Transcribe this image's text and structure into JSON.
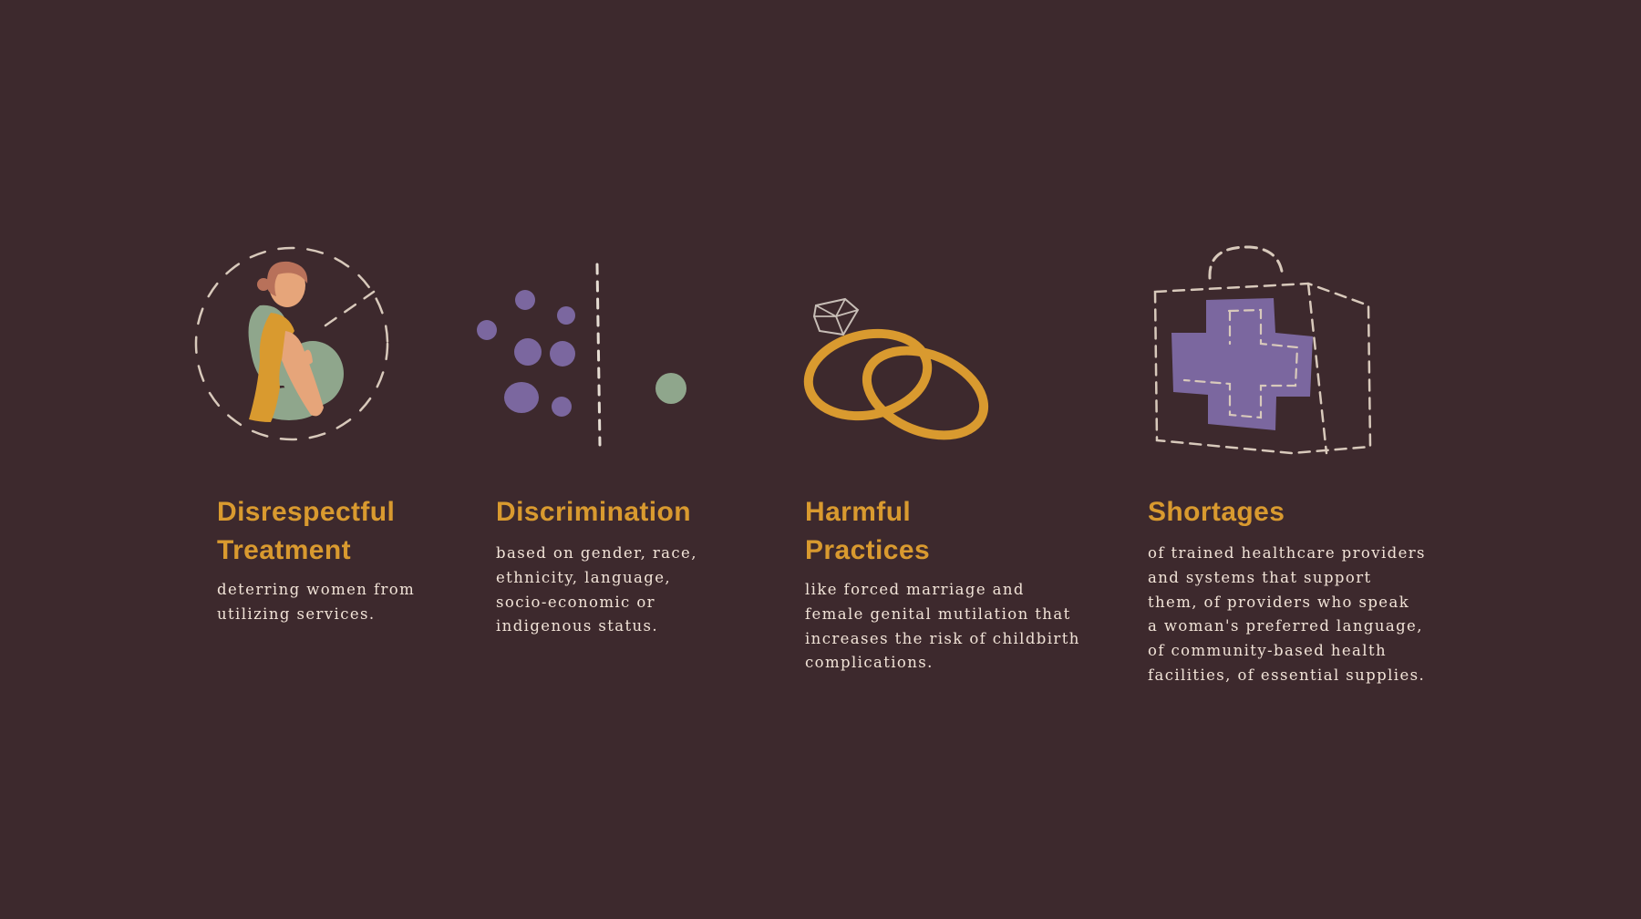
{
  "colors": {
    "background": "#3d292d",
    "title": "#d99a2f",
    "text": "#f1e3d7",
    "dashes": "#d8c9bb",
    "purple": "#7b679f",
    "sage": "#8fa68c",
    "gold": "#d99a2f",
    "skin": "#e6a57a",
    "hair": "#b8715a"
  },
  "items": [
    {
      "icon": "seated-woman-icon",
      "title_line1": "Disrespectful",
      "title_line2": "Treatment",
      "description": "deterring women from\nutilizing services."
    },
    {
      "icon": "separated-dots-icon",
      "title_line1": "Discrimination",
      "description": "based on gender, race,\nethnicity, language,\nsocio-economic or\nindigenous status."
    },
    {
      "icon": "wedding-rings-icon",
      "title_line1": "Harmful",
      "title_line2": "Practices",
      "description": "like forced marriage and\nfemale genital mutilation that\nincreases the risk of childbirth\ncomplications."
    },
    {
      "icon": "medical-kit-icon",
      "title_line1": "Shortages",
      "description": "of trained healthcare providers\nand systems that support\nthem, of providers who speak\na woman's preferred language,\nof community-based health\nfacilities, of essential supplies."
    }
  ]
}
